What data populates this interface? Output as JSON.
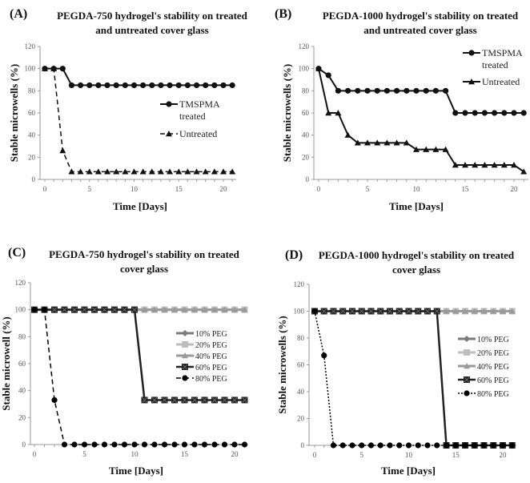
{
  "chart_data": [
    {
      "type": "line",
      "panel_label": "(A)",
      "title": [
        "PEGDA-750 hydrogel's stability on treated",
        "and untreated cover glass"
      ],
      "xlabel": "Time [Days]",
      "ylabel": "Stable microwells (%)",
      "xlim": [
        0,
        21
      ],
      "ylim": [
        0,
        120
      ],
      "xticks": [
        "0",
        "5",
        "10",
        "15",
        "20"
      ],
      "yticks": [
        "0",
        "20",
        "40",
        "60",
        "80",
        "100",
        "120"
      ],
      "legend_position": "right",
      "x": [
        0,
        1,
        2,
        3,
        4,
        5,
        6,
        7,
        8,
        9,
        10,
        11,
        12,
        13,
        14,
        15,
        16,
        17,
        18,
        19,
        20,
        21
      ],
      "series": [
        {
          "name": [
            "TMSPMA",
            "treated"
          ],
          "color": "#111111",
          "marker": "circle",
          "dash": "solid",
          "values": [
            100,
            100,
            100,
            85,
            85,
            85,
            85,
            85,
            85,
            85,
            85,
            85,
            85,
            85,
            85,
            85,
            85,
            85,
            85,
            85,
            85,
            85
          ]
        },
        {
          "name": [
            "Untreated"
          ],
          "color": "#111111",
          "marker": "triangle",
          "dash": "dashed",
          "values": [
            100,
            100,
            26,
            7,
            7,
            7,
            7,
            7,
            7,
            7,
            7,
            7,
            7,
            7,
            7,
            7,
            7,
            7,
            7,
            7,
            7,
            7
          ]
        }
      ]
    },
    {
      "type": "line",
      "panel_label": "(B)",
      "title": [
        "PEGDA-1000 hydrogel's stability on treated",
        "and untreated cover glass"
      ],
      "xlabel": "Time [Days]",
      "ylabel": "Stable microwells (%)",
      "xlim": [
        0,
        21
      ],
      "ylim": [
        0,
        120
      ],
      "xticks": [
        "0",
        "5",
        "10",
        "15",
        "20"
      ],
      "yticks": [
        "0",
        "20",
        "40",
        "60",
        "80",
        "100",
        "120"
      ],
      "legend_position": "top-right",
      "x": [
        0,
        1,
        2,
        3,
        4,
        5,
        6,
        7,
        8,
        9,
        10,
        11,
        12,
        13,
        14,
        15,
        16,
        17,
        18,
        19,
        20,
        21
      ],
      "series": [
        {
          "name": [
            "TMSPMA",
            "treated"
          ],
          "color": "#111111",
          "marker": "circle",
          "dash": "solid",
          "values": [
            100,
            94,
            80,
            80,
            80,
            80,
            80,
            80,
            80,
            80,
            80,
            80,
            80,
            80,
            60,
            60,
            60,
            60,
            60,
            60,
            60,
            60
          ]
        },
        {
          "name": [
            "Untreated"
          ],
          "color": "#111111",
          "marker": "triangle",
          "dash": "solid",
          "values": [
            100,
            60,
            60,
            40,
            33,
            33,
            33,
            33,
            33,
            33,
            27,
            27,
            27,
            27,
            13,
            13,
            13,
            13,
            13,
            13,
            13,
            7
          ]
        }
      ]
    },
    {
      "type": "line",
      "panel_label": "(C)",
      "title": [
        "PEGDA-750 hydrogel's stability on treated",
        "cover glass"
      ],
      "xlabel": "Time [Days]",
      "ylabel": "Stable microwell (%)",
      "xlim": [
        0,
        21
      ],
      "ylim": [
        0,
        120
      ],
      "xticks": [
        "0",
        "5",
        "10",
        "15",
        "20"
      ],
      "yticks": [
        "0",
        "20",
        "40",
        "60",
        "80",
        "100",
        "120"
      ],
      "legend_position": "right",
      "x": [
        0,
        1,
        2,
        3,
        4,
        5,
        6,
        7,
        8,
        9,
        10,
        11,
        12,
        13,
        14,
        15,
        16,
        17,
        18,
        19,
        20,
        21
      ],
      "series": [
        {
          "name": [
            "10% PEG"
          ],
          "color": "#7a7a7a",
          "marker": "diamond",
          "dash": "solid",
          "values": [
            100,
            100,
            100,
            100,
            100,
            100,
            100,
            100,
            100,
            100,
            100,
            100,
            100,
            100,
            100,
            100,
            100,
            100,
            100,
            100,
            100,
            100
          ]
        },
        {
          "name": [
            "20% PEG"
          ],
          "color": "#bdbdbd",
          "marker": "square",
          "dash": "solid",
          "values": [
            100,
            100,
            100,
            100,
            100,
            100,
            100,
            100,
            100,
            100,
            100,
            100,
            100,
            100,
            100,
            100,
            100,
            100,
            100,
            100,
            100,
            100
          ]
        },
        {
          "name": [
            "40% PEG"
          ],
          "color": "#9a9a9a",
          "marker": "triangle",
          "dash": "solid",
          "values": [
            100,
            100,
            100,
            100,
            100,
            100,
            100,
            100,
            100,
            100,
            100,
            100,
            100,
            100,
            100,
            100,
            100,
            100,
            100,
            100,
            100,
            100
          ]
        },
        {
          "name": [
            "60% PEG"
          ],
          "color": "#222222",
          "marker": "xsquare",
          "dash": "solid",
          "values": [
            100,
            100,
            100,
            100,
            100,
            100,
            100,
            100,
            100,
            100,
            100,
            33,
            33,
            33,
            33,
            33,
            33,
            33,
            33,
            33,
            33,
            33
          ]
        },
        {
          "name": [
            "80% PEG"
          ],
          "color": "#000000",
          "marker": "circle",
          "dash": "dashed",
          "values": [
            100,
            100,
            33,
            0,
            0,
            0,
            0,
            0,
            0,
            0,
            0,
            0,
            0,
            0,
            0,
            0,
            0,
            0,
            0,
            0,
            0,
            0
          ]
        }
      ]
    },
    {
      "type": "line",
      "panel_label": "(D)",
      "title": [
        "PEGDA-1000 hydrogel's stability on treated",
        "cover glass"
      ],
      "xlabel": "Time [Days]",
      "ylabel": "Stable microwells (%)",
      "xlim": [
        0,
        21
      ],
      "ylim": [
        0,
        120
      ],
      "xticks": [
        "0",
        "5",
        "10",
        "15",
        "20"
      ],
      "yticks": [
        "0",
        "20",
        "40",
        "60",
        "80",
        "100",
        "120"
      ],
      "legend_position": "right",
      "x": [
        0,
        1,
        2,
        3,
        4,
        5,
        6,
        7,
        8,
        9,
        10,
        11,
        12,
        13,
        14,
        15,
        16,
        17,
        18,
        19,
        20,
        21
      ],
      "series": [
        {
          "name": [
            "10% PEG"
          ],
          "color": "#7a7a7a",
          "marker": "diamond",
          "dash": "solid",
          "values": [
            100,
            100,
            100,
            100,
            100,
            100,
            100,
            100,
            100,
            100,
            100,
            100,
            100,
            100,
            100,
            100,
            100,
            100,
            100,
            100,
            100,
            100
          ]
        },
        {
          "name": [
            "20% PEG"
          ],
          "color": "#bdbdbd",
          "marker": "square",
          "dash": "solid",
          "values": [
            100,
            100,
            100,
            100,
            100,
            100,
            100,
            100,
            100,
            100,
            100,
            100,
            100,
            100,
            100,
            100,
            100,
            100,
            100,
            100,
            100,
            100
          ]
        },
        {
          "name": [
            "40% PEG"
          ],
          "color": "#9a9a9a",
          "marker": "triangle",
          "dash": "solid",
          "values": [
            100,
            100,
            100,
            100,
            100,
            100,
            100,
            100,
            100,
            100,
            100,
            100,
            100,
            100,
            100,
            100,
            100,
            100,
            100,
            100,
            100,
            100
          ]
        },
        {
          "name": [
            "60% PEG"
          ],
          "color": "#222222",
          "marker": "xsquare",
          "dash": "solid",
          "values": [
            100,
            100,
            100,
            100,
            100,
            100,
            100,
            100,
            100,
            100,
            100,
            100,
            100,
            100,
            0,
            0,
            0,
            0,
            0,
            0,
            0,
            0
          ]
        },
        {
          "name": [
            "80% PEG"
          ],
          "color": "#000000",
          "marker": "circle",
          "dash": "dotted",
          "values": [
            100,
            67,
            0,
            0,
            0,
            0,
            0,
            0,
            0,
            0,
            0,
            0,
            0,
            0,
            0,
            0,
            0,
            0,
            0,
            0,
            0,
            0
          ]
        }
      ]
    }
  ]
}
